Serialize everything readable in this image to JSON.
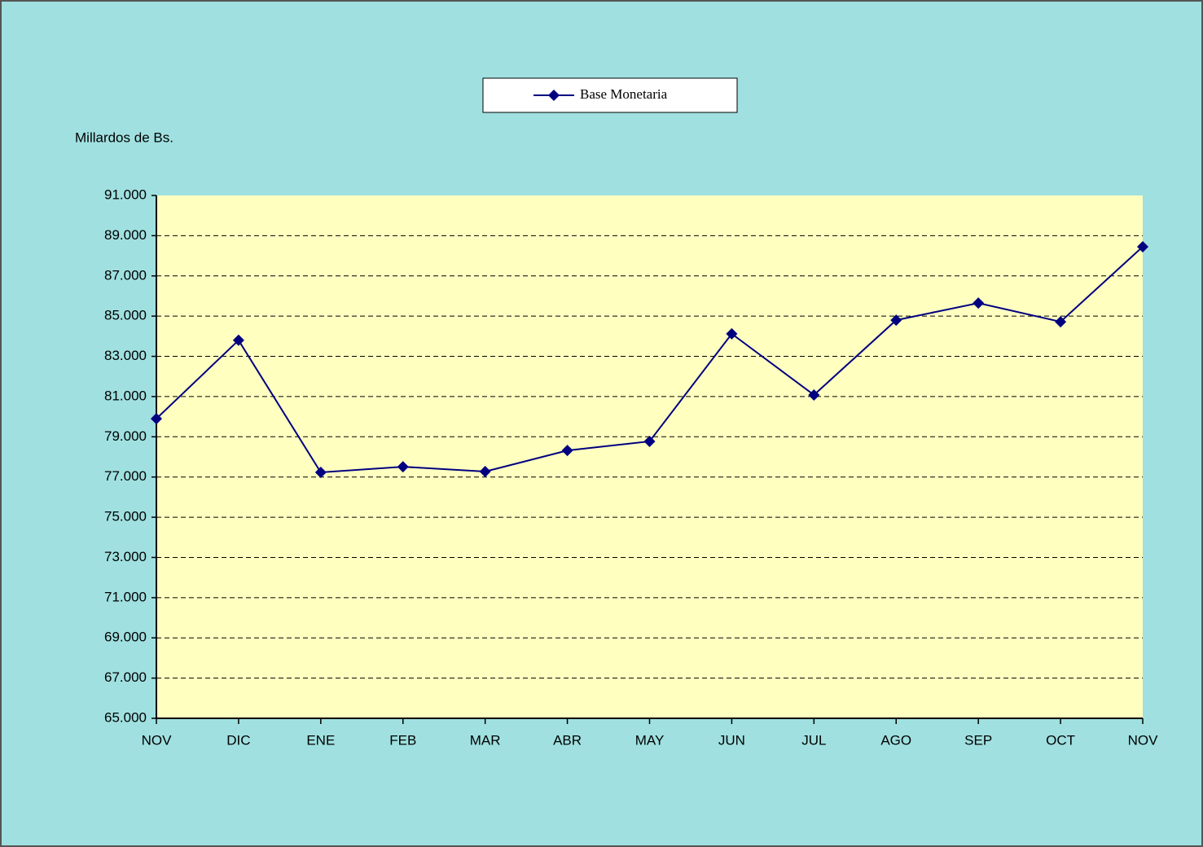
{
  "chart_data": {
    "type": "line",
    "y_label": "Millardos de Bs.",
    "categories": [
      "NOV",
      "DIC",
      "ENE",
      "FEB",
      "MAR",
      "ABR",
      "MAY",
      "JUN",
      "JUL",
      "AGO",
      "SEP",
      "OCT",
      "NOV"
    ],
    "series": [
      {
        "name": "Base Monetaria",
        "color": "#000080",
        "values": [
          79900,
          83800,
          77230,
          77510,
          77270,
          78320,
          78770,
          84120,
          81080,
          84800,
          85650,
          84720,
          88450
        ]
      }
    ],
    "ylim": [
      65000,
      91000
    ],
    "yticks": [
      {
        "value": 65000,
        "label": "65.000"
      },
      {
        "value": 67000,
        "label": "67.000"
      },
      {
        "value": 69000,
        "label": "69.000"
      },
      {
        "value": 71000,
        "label": "71.000"
      },
      {
        "value": 73000,
        "label": "73.000"
      },
      {
        "value": 75000,
        "label": "75.000"
      },
      {
        "value": 77000,
        "label": "77.000"
      },
      {
        "value": 79000,
        "label": "79.000"
      },
      {
        "value": 81000,
        "label": "81.000"
      },
      {
        "value": 83000,
        "label": "83.000"
      },
      {
        "value": 85000,
        "label": "85.000"
      },
      {
        "value": 87000,
        "label": "87.000"
      },
      {
        "value": 89000,
        "label": "89.000"
      },
      {
        "value": 91000,
        "label": "91.000"
      }
    ],
    "grid": true,
    "legend": "top"
  }
}
